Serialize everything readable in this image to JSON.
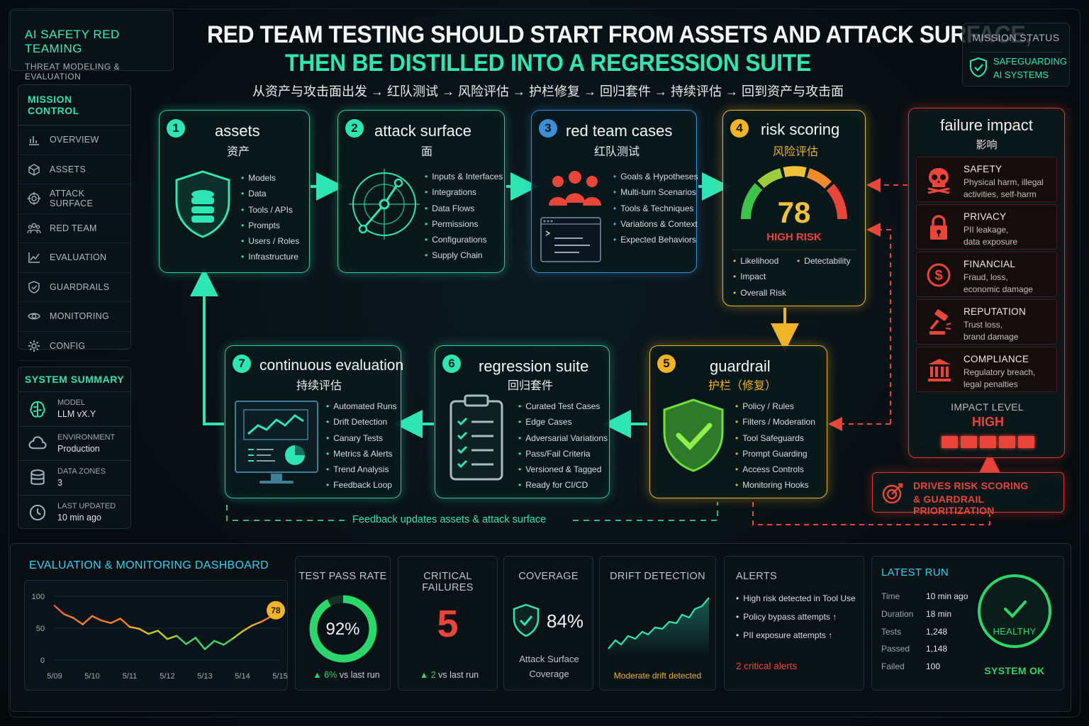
{
  "brand": {
    "title": "AI SAFETY RED TEAMING",
    "subtitle": "THREAT MODELING & EVALUATION"
  },
  "header": {
    "line1": "RED TEAM TESTING SHOULD START FROM ASSETS AND ATTACK SURFACE,",
    "line2": "THEN BE DISTILLED INTO A REGRESSION SUITE",
    "flow": "从资产与攻击面出发 → 红队测试 → 风险评估 → 护栏修复 → 回归套件 → 持续评估 → 回到资产与攻击面"
  },
  "mission_status": {
    "label": "MISSION STATUS",
    "value_line1": "SAFEGUARDING",
    "value_line2": "AI SYSTEMS"
  },
  "nav": {
    "heading": "MISSION CONTROL",
    "items": [
      {
        "label": "OVERVIEW",
        "icon": "bar-chart-icon"
      },
      {
        "label": "ASSETS",
        "icon": "cube-icon"
      },
      {
        "label": "ATTACK SURFACE",
        "icon": "target-icon"
      },
      {
        "label": "RED TEAM",
        "icon": "team-icon"
      },
      {
        "label": "EVALUATION",
        "icon": "line-chart-icon"
      },
      {
        "label": "GUARDRAILS",
        "icon": "shield-icon"
      },
      {
        "label": "MONITORING",
        "icon": "eye-icon"
      },
      {
        "label": "CONFIG",
        "icon": "gear-icon"
      }
    ]
  },
  "system_summary": {
    "heading": "SYSTEM SUMMARY",
    "items": [
      {
        "label": "MODEL",
        "value": "LLM vX.Y",
        "icon": "brain-icon"
      },
      {
        "label": "ENVIRONMENT",
        "value": "Production",
        "icon": "cloud-icon"
      },
      {
        "label": "DATA ZONES",
        "value": "3",
        "icon": "database-icon"
      },
      {
        "label": "LAST UPDATED",
        "value": "10 min ago",
        "icon": "clock-icon"
      }
    ]
  },
  "steps": {
    "s1": {
      "num": "1",
      "title": "assets",
      "subtitle": "资产",
      "items": [
        "Models",
        "Data",
        "Tools / APIs",
        "Prompts",
        "Users / Roles",
        "Infrastructure"
      ]
    },
    "s2": {
      "num": "2",
      "title": "attack surface",
      "subtitle": "面",
      "items": [
        "Inputs & Interfaces",
        "Integrations",
        "Data Flows",
        "Permissions",
        "Configurations",
        "Supply Chain"
      ]
    },
    "s3": {
      "num": "3",
      "title": "red team cases",
      "subtitle": "红队测试",
      "items": [
        "Goals & Hypotheses",
        "Multi-turn Scenarios",
        "Tools & Techniques",
        "Variations & Context",
        "Expected Behaviors"
      ]
    },
    "s4": {
      "num": "4",
      "title": "risk scoring",
      "subtitle": "风险评估",
      "score": "78",
      "level": "HIGH RISK",
      "items": [
        "Likelihood",
        "Impact",
        "Overall Risk",
        "Detectability"
      ]
    },
    "s5": {
      "num": "5",
      "title": "guardrail",
      "subtitle": "护栏（修复）",
      "items": [
        "Policy / Rules",
        "Filters / Moderation",
        "Tool Safeguards",
        "Prompt Guarding",
        "Access Controls",
        "Monitoring Hooks"
      ]
    },
    "s6": {
      "num": "6",
      "title": "regression suite",
      "subtitle": "回归套件",
      "items": [
        "Curated Test Cases",
        "Edge Cases",
        "Adversarial Variations",
        "Pass/Fail Criteria",
        "Versioned & Tagged",
        "Ready for CI/CD"
      ]
    },
    "s7": {
      "num": "7",
      "title": "continuous evaluation",
      "subtitle": "持续评估",
      "items": [
        "Automated Runs",
        "Drift Detection",
        "Canary Tests",
        "Metrics & Alerts",
        "Trend Analysis",
        "Feedback Loop"
      ]
    }
  },
  "failure_impact": {
    "title": "failure impact",
    "subtitle": "影响",
    "items": [
      {
        "name": "SAFETY",
        "desc1": "Physical harm, illegal",
        "desc2": "activities, self-harm",
        "icon": "skull-icon"
      },
      {
        "name": "PRIVACY",
        "desc1": "PII leakage,",
        "desc2": "data exposure",
        "icon": "lock-icon"
      },
      {
        "name": "FINANCIAL",
        "desc1": "Fraud, loss,",
        "desc2": "economic damage",
        "icon": "dollar-icon"
      },
      {
        "name": "REPUTATION",
        "desc1": "Trust loss,",
        "desc2": "brand damage",
        "icon": "gavel-icon"
      },
      {
        "name": "COMPLIANCE",
        "desc1": "Regulatory breach,",
        "desc2": "legal penalties",
        "icon": "bank-icon"
      }
    ],
    "level_label": "IMPACT LEVEL",
    "level_value": "HIGH",
    "level_bars": 5
  },
  "drives": {
    "line1": "DRIVES RISK SCORING",
    "line2": "& GUARDRAIL PRIORITIZATION"
  },
  "feedback_label": "Feedback updates assets & attack surface",
  "dashboard": {
    "title": "EVALUATION & MONITORING DASHBOARD",
    "pass_rate": {
      "title": "TEST PASS RATE",
      "value": "92%",
      "fraction": 0.92,
      "delta": "6%",
      "delta_text": "vs last run"
    },
    "critical": {
      "title": "CRITICAL FAILURES",
      "value": "5",
      "delta": "2",
      "delta_text": "vs last run"
    },
    "coverage": {
      "title": "COVERAGE",
      "value": "84%",
      "caption1": "Attack Surface",
      "caption2": "Coverage"
    },
    "drift": {
      "title": "DRIFT DETECTION",
      "caption": "Moderate drift detected"
    },
    "alerts": {
      "title": "ALERTS",
      "items": [
        "High risk detected in Tool Use",
        "Policy bypass attempts ↑",
        "PII exposure attempts ↑"
      ],
      "summary": "2 critical alerts"
    },
    "latest_run": {
      "title": "LATEST RUN",
      "rows": [
        {
          "k": "Time",
          "v": "10 min ago"
        },
        {
          "k": "Duration",
          "v": "18 min"
        },
        {
          "k": "Tests",
          "v": "1,248"
        },
        {
          "k": "Passed",
          "v": "1,148"
        },
        {
          "k": "Failed",
          "v": "100"
        }
      ],
      "status": "HEALTHY",
      "system": "SYSTEM OK"
    }
  },
  "chart_data": {
    "type": "line",
    "categories": [
      "5/09",
      "5/10",
      "5/11",
      "5/12",
      "5/13",
      "5/14",
      "5/15"
    ],
    "x": [
      0,
      0.25,
      0.5,
      0.75,
      1,
      1.25,
      1.5,
      1.75,
      2,
      2.25,
      2.5,
      2.75,
      3,
      3.25,
      3.5,
      3.75,
      4,
      4.25,
      4.5,
      4.75,
      5,
      5.25,
      5.5,
      5.75,
      6
    ],
    "values": [
      85,
      72,
      66,
      56,
      69,
      62,
      58,
      65,
      52,
      49,
      41,
      46,
      33,
      38,
      25,
      35,
      17,
      30,
      24,
      34,
      45,
      54,
      60,
      68,
      78
    ],
    "ylim": [
      0,
      100
    ],
    "yticks": [
      0,
      50,
      100
    ],
    "last_label": "78",
    "grid": true
  }
}
